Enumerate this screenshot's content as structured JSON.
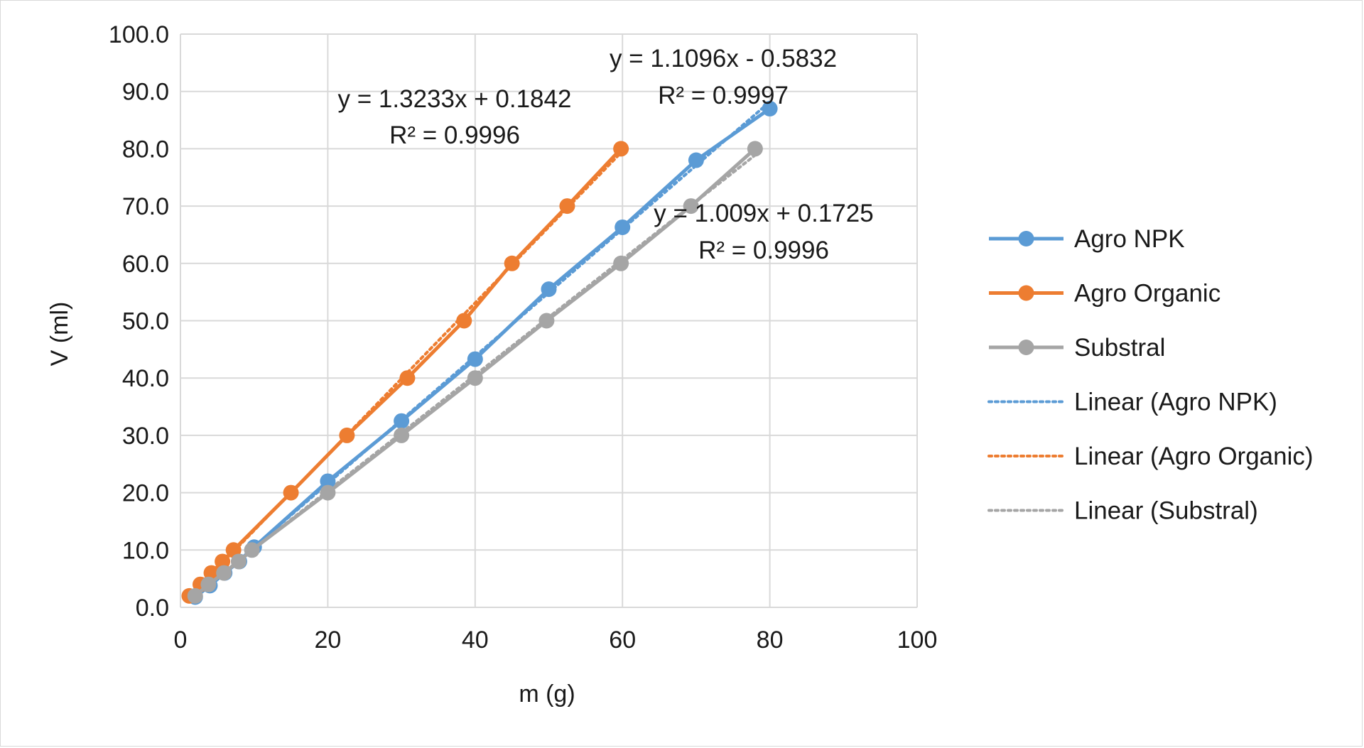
{
  "chart_data": {
    "type": "line",
    "title": "",
    "xlabel": "m (g)",
    "ylabel": "V (ml)",
    "xlim": [
      0,
      100
    ],
    "ylim": [
      0,
      100
    ],
    "x_ticks": [
      "0",
      "20",
      "40",
      "60",
      "80",
      "100"
    ],
    "y_ticks": [
      "0.0",
      "10.0",
      "20.0",
      "30.0",
      "40.0",
      "50.0",
      "60.0",
      "70.0",
      "80.0",
      "90.0",
      "100.0"
    ],
    "grid": true,
    "legend_position": "right",
    "series": [
      {
        "name": "Agro NPK",
        "color": "#5b9bd5",
        "marker": "circle",
        "points": [
          [
            2.0,
            1.8
          ],
          [
            4.0,
            3.8
          ],
          [
            6.0,
            6.0
          ],
          [
            8.0,
            8.0
          ],
          [
            10.0,
            10.5
          ],
          [
            20.0,
            22.0
          ],
          [
            30.0,
            32.5
          ],
          [
            40.0,
            43.3
          ],
          [
            50.0,
            55.5
          ],
          [
            60.0,
            66.3
          ],
          [
            70.0,
            78.0
          ],
          [
            80.0,
            87.0
          ]
        ]
      },
      {
        "name": "Agro Organic",
        "color": "#ed7d31",
        "marker": "circle",
        "points": [
          [
            1.2,
            2.0
          ],
          [
            2.7,
            4.0
          ],
          [
            4.2,
            6.0
          ],
          [
            5.7,
            8.0
          ],
          [
            7.2,
            10.0
          ],
          [
            15.0,
            20.0
          ],
          [
            22.6,
            30.0
          ],
          [
            30.8,
            40.0
          ],
          [
            38.5,
            50.0
          ],
          [
            45.0,
            60.0
          ],
          [
            52.5,
            70.0
          ],
          [
            59.8,
            80.0
          ]
        ]
      },
      {
        "name": "Substral",
        "color": "#a5a5a5",
        "marker": "circle",
        "points": [
          [
            2.0,
            2.0
          ],
          [
            3.8,
            4.0
          ],
          [
            5.9,
            6.0
          ],
          [
            7.9,
            8.0
          ],
          [
            9.7,
            10.0
          ],
          [
            20.0,
            20.0
          ],
          [
            30.0,
            30.0
          ],
          [
            40.0,
            40.0
          ],
          [
            49.7,
            50.0
          ],
          [
            59.8,
            60.0
          ],
          [
            69.3,
            70.0
          ],
          [
            78.0,
            80.0
          ]
        ]
      }
    ],
    "trendlines": [
      {
        "name": "Linear (Agro NPK)",
        "color": "#5b9bd5",
        "slope": 1.1096,
        "intercept": -0.5832,
        "x_range": [
          2,
          80
        ],
        "equation": "y = 1.1096x - 0.5832",
        "r2": "R² = 0.9997"
      },
      {
        "name": "Linear (Agro Organic)",
        "color": "#ed7d31",
        "slope": 1.3233,
        "intercept": 0.1842,
        "x_range": [
          1.2,
          59.8
        ],
        "equation": "y = 1.3233x + 0.1842",
        "r2": "R² = 0.9996"
      },
      {
        "name": "Linear (Substral)",
        "color": "#a5a5a5",
        "slope": 1.009,
        "intercept": 0.1725,
        "x_range": [
          2,
          78
        ],
        "equation": "y = 1.009x + 0.1725",
        "r2": "R² = 0.9996"
      }
    ]
  }
}
